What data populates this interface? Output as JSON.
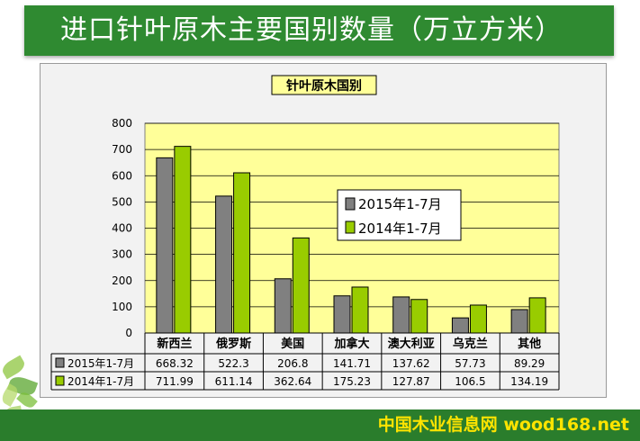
{
  "slide": {
    "title": "进口针叶原木主要国别数量（万立方米）",
    "footer": "中国木业信息网 wood168.net"
  },
  "colors": {
    "title_bg": "#2f8a31",
    "footer_bg": "#2a7d2c",
    "footer_text": "#ffe400",
    "plot_bg": "#ffff99",
    "series_2015": "#808080",
    "series_2014": "#99cc00"
  },
  "chart_data": {
    "type": "bar",
    "title": "针叶原木国别",
    "categories": [
      "新西兰",
      "俄罗斯",
      "美国",
      "加拿大",
      "澳大利亚",
      "乌克兰",
      "其他"
    ],
    "series": [
      {
        "name": "2015年1-7月",
        "values": [
          668.32,
          522.3,
          206.8,
          141.71,
          137.62,
          57.73,
          89.29
        ],
        "labels": [
          "668.32",
          "522.3",
          "206.8",
          "141.71",
          "137.62",
          "57.73",
          "89.29"
        ]
      },
      {
        "name": "2014年1-7月",
        "values": [
          711.99,
          611.14,
          362.64,
          175.23,
          127.87,
          106.5,
          134.19
        ],
        "labels": [
          "711.99",
          "611.14",
          "362.64",
          "175.23",
          "127.87",
          "106.5",
          "134.19"
        ]
      }
    ],
    "ylim": [
      0,
      800
    ],
    "yticks": [
      "0",
      "100",
      "200",
      "300",
      "400",
      "500",
      "600",
      "700",
      "800"
    ],
    "xlabel": "",
    "ylabel": "",
    "legend_position": "center-right",
    "grid": true
  }
}
